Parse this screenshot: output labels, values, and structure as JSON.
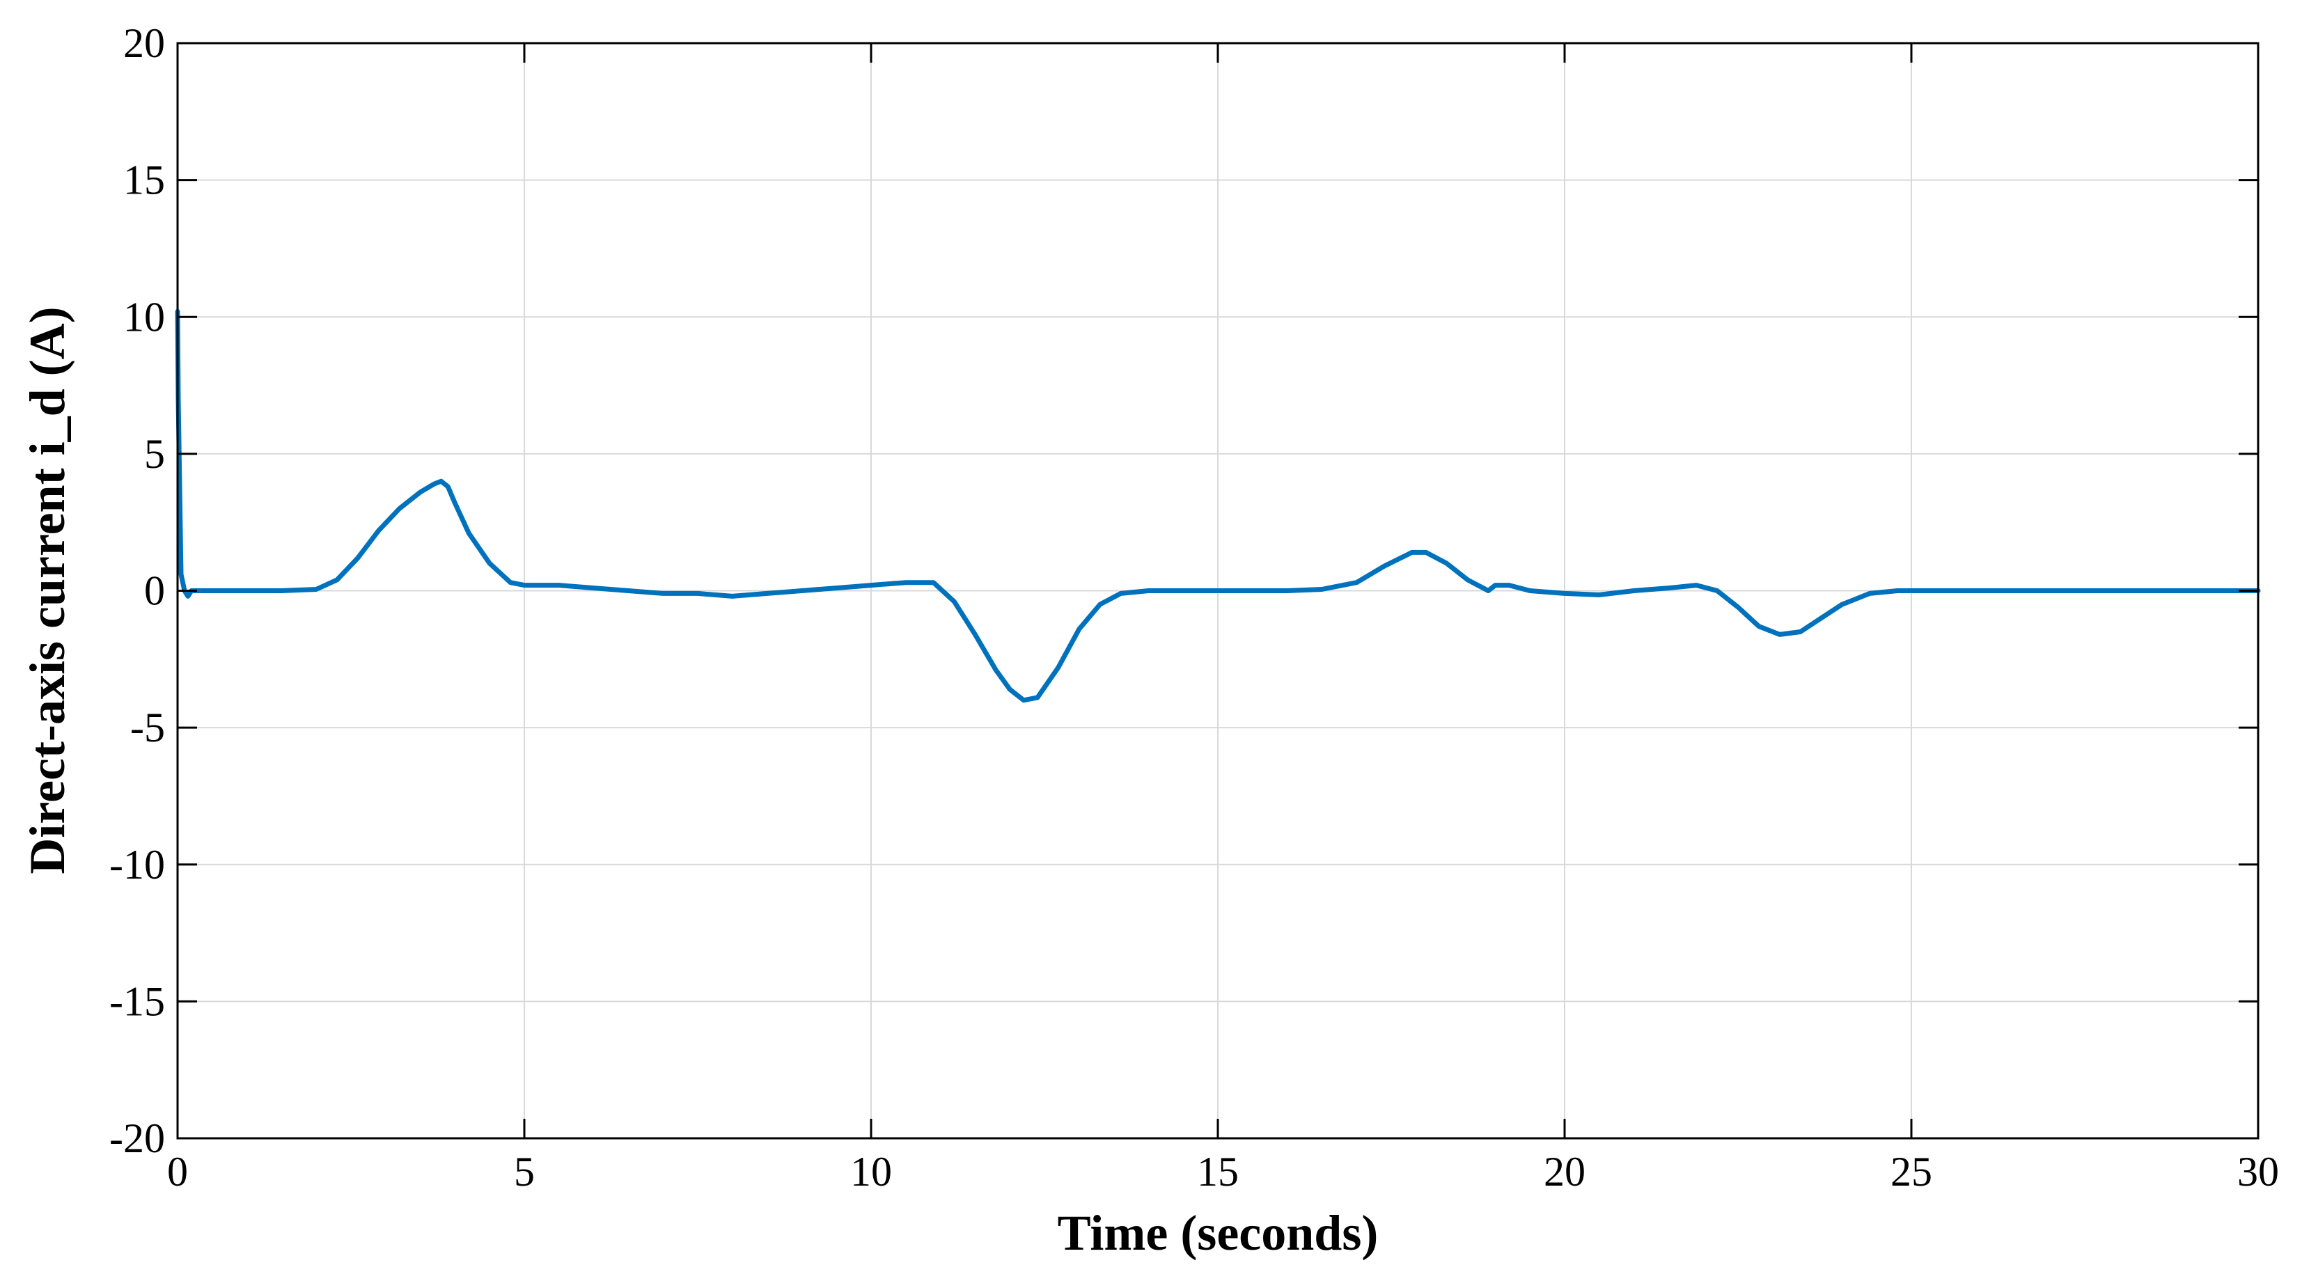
{
  "chart_data": {
    "type": "line",
    "title": "",
    "xlabel": "Time (seconds)",
    "ylabel": "Direct-axis current i_d (A)",
    "xlim": [
      0,
      30
    ],
    "ylim": [
      -20,
      20
    ],
    "xticks": [
      0,
      5,
      10,
      15,
      20,
      25,
      30
    ],
    "xtick_labels": [
      "0",
      "5",
      "10",
      "15",
      "20",
      "25",
      "30"
    ],
    "yticks": [
      20,
      15,
      10,
      5,
      0,
      -5,
      -10,
      -15,
      -20
    ],
    "ytick_labels": [
      "20",
      "15",
      "10",
      "5",
      "0",
      "-5",
      "-10",
      "-15",
      "-20"
    ],
    "grid": true,
    "legend": "none",
    "line_color": "#0072BD",
    "series": [
      {
        "x": [
          0,
          0.01,
          0.05,
          0.1,
          0.15,
          0.2,
          0.3,
          0.5,
          1.0,
          1.5,
          2.0,
          2.3,
          2.6,
          2.9,
          3.2,
          3.5,
          3.7,
          3.8,
          3.9,
          4.0,
          4.2,
          4.5,
          4.8,
          5.0,
          5.5,
          6.0,
          6.5,
          7.0,
          7.5,
          8.0,
          8.5,
          9.0,
          9.5,
          10.0,
          10.5,
          10.9,
          11.2,
          11.5,
          11.8,
          12.0,
          12.2,
          12.4,
          12.7,
          13.0,
          13.3,
          13.6,
          14.0,
          15.0,
          16.0,
          16.5,
          17.0,
          17.4,
          17.8,
          18.0,
          18.3,
          18.6,
          18.9,
          19.0,
          19.2,
          19.5,
          20.0,
          20.5,
          21.0,
          21.5,
          21.9,
          22.2,
          22.5,
          22.8,
          23.1,
          23.4,
          23.7,
          24.0,
          24.4,
          24.8,
          25.0,
          26.0,
          27.0,
          28.0,
          29.0,
          30.0
        ],
        "y": [
          10.2,
          7.0,
          0.6,
          0.0,
          -0.2,
          0.0,
          0.0,
          0.0,
          0.0,
          0.0,
          0.05,
          0.4,
          1.2,
          2.2,
          3.0,
          3.6,
          3.9,
          4.0,
          3.8,
          3.2,
          2.1,
          1.0,
          0.3,
          0.2,
          0.2,
          0.1,
          0.0,
          -0.1,
          -0.1,
          -0.2,
          -0.1,
          0.0,
          0.1,
          0.2,
          0.3,
          0.3,
          -0.4,
          -1.6,
          -2.9,
          -3.6,
          -4.0,
          -3.9,
          -2.8,
          -1.4,
          -0.5,
          -0.1,
          0.0,
          0.0,
          0.0,
          0.05,
          0.3,
          0.9,
          1.4,
          1.4,
          1.0,
          0.4,
          0.0,
          0.2,
          0.2,
          0.0,
          -0.1,
          -0.15,
          0.0,
          0.1,
          0.2,
          0.0,
          -0.6,
          -1.3,
          -1.6,
          -1.5,
          -1.0,
          -0.5,
          -0.1,
          0.0,
          0.0,
          0.0,
          0.0,
          0.0,
          0.0,
          0.0
        ]
      }
    ]
  }
}
